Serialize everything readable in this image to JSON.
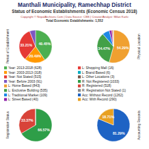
{
  "header": {
    "title": "Manthali Municipality, Ramechhap District",
    "subtitle": "Status of Economic Establishments (Economic Census 2018)",
    "credit": "Copyright © NepalArchives.Com | Data Source: CBS | Creator/Analyst: Milan Karki",
    "total": "Total Economic Establishments: 1,552"
  },
  "chart_data": [
    {
      "type": "pie",
      "title": "Period of Establishment",
      "categories": [
        "Year: 2013-2018 (628)",
        "Year: 2003-2013 (318)",
        "Year: Not Stated (515)",
        "Year: Before 2003 (91)"
      ],
      "values": [
        40.45,
        20.49,
        33.21,
        5.85
      ],
      "value_labels": [
        "40.45%",
        "20.49%",
        "33.21%",
        null
      ],
      "colors": [
        "#4caf50",
        "#ff9800",
        "#e53935",
        "#7e57c2"
      ],
      "data_labels": true
    },
    {
      "type": "pie",
      "title": "Physical Location",
      "categories": [
        "L: Home Based (843)",
        "L: Exclusive Building (535)",
        "L: Traditional Market (109)",
        "L: Street Based (40)",
        "L: Shopping Mall (16)",
        "L: Brand Based (6)",
        "L: Other Locations (3)"
      ],
      "values": [
        54.29,
        34.47,
        7.03,
        2.58,
        1.03,
        0.39,
        0.21
      ],
      "value_labels": [
        "54.29%",
        "34.47%",
        null,
        null,
        null,
        null,
        null
      ],
      "colors": [
        "#f0a030",
        "#43a047",
        "#1e88e5",
        "#8e24aa",
        "#e53935",
        "#00acc1",
        "#795548"
      ],
      "data_labels": true
    },
    {
      "type": "pie",
      "title": "Registration Status",
      "categories": [
        "R: Not Registered (1033)",
        "R: Registered (518)",
        "R: Registration Not Stated (1)"
      ],
      "values": [
        66.57,
        33.37,
        0.06
      ],
      "value_labels": [
        "66.57%",
        "33.37%",
        null
      ],
      "colors": [
        "#2e9e48",
        "#d84339",
        "#888888"
      ],
      "data_labels": true
    },
    {
      "type": "pie",
      "title": "Accounting Records",
      "categories": [
        "Acc: Without Record (1262)",
        "Acc: With Record (290)"
      ],
      "values": [
        81.29,
        18.71
      ],
      "value_labels": [
        "81.29%",
        "18.71%"
      ],
      "colors": [
        "#1e63c4",
        "#e8a020"
      ],
      "data_labels": true
    }
  ]
}
